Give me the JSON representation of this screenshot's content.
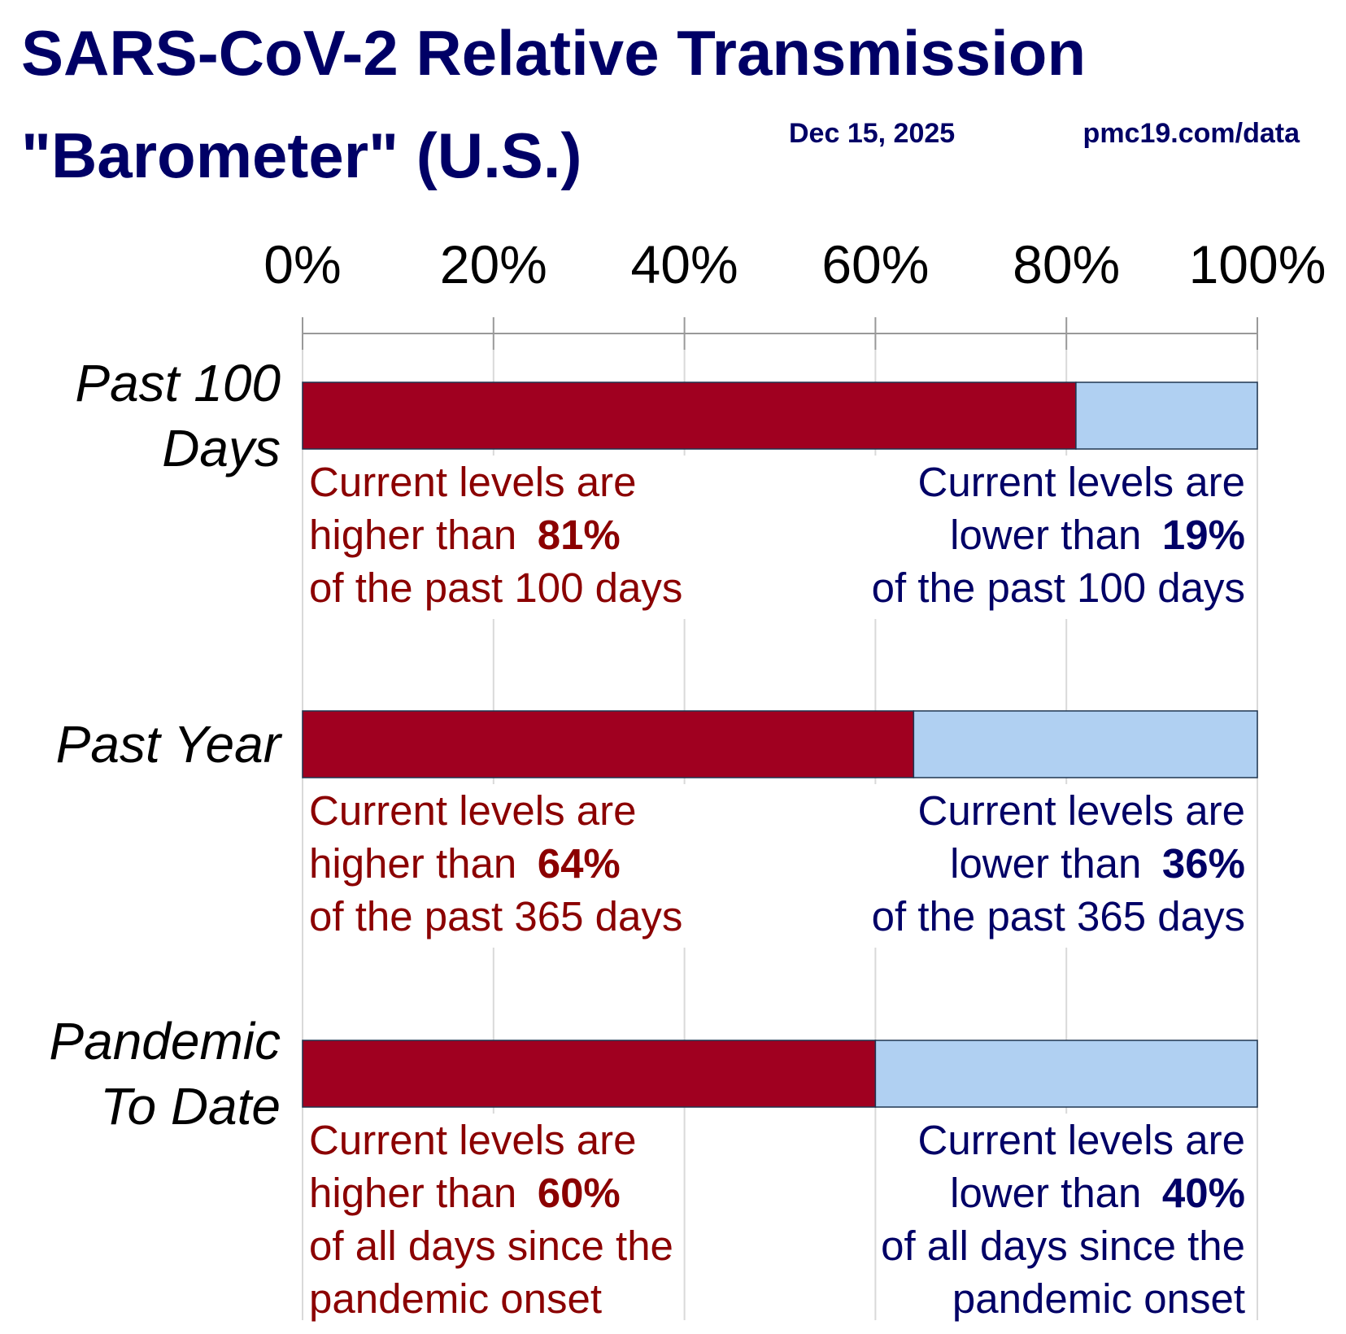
{
  "chart_data": {
    "type": "stacked-barh",
    "title": [
      "SARS-CoV-2 Relative Transmission",
      "\"Barometer\" (U.S.)"
    ],
    "date": "Dec 15, 2025",
    "source": "pmc19.com/data",
    "categories": [
      "Past 100 Days",
      "Past Year",
      "Pandemic To Date"
    ],
    "series": [
      {
        "color": "#a00020",
        "values": [
          81,
          64,
          60
        ],
        "value_labels": [
          "81%",
          "64%",
          "60%"
        ]
      },
      {
        "color": "#b0d0f2",
        "values": [
          19,
          36,
          40
        ],
        "value_labels": [
          "19%",
          "36%",
          "40%"
        ]
      }
    ],
    "xlim": [
      0,
      100
    ],
    "xticks": [
      {
        "value": 0,
        "label": "0%"
      },
      {
        "value": 20,
        "label": "20%"
      },
      {
        "value": 40,
        "label": "40%"
      },
      {
        "value": 60,
        "label": "60%"
      },
      {
        "value": 80,
        "label": "80%"
      },
      {
        "value": 100,
        "label": "100%"
      }
    ],
    "grid": true,
    "annotations": [
      {
        "higher": [
          "Current levels are",
          "higher than"
        ],
        "higher_rest": [
          "of the past 100 days"
        ],
        "lower": [
          "Current levels are",
          "lower than"
        ],
        "lower_rest": [
          "of the past 100 days"
        ]
      },
      {
        "higher": [
          "Current levels are",
          "higher than"
        ],
        "higher_rest": [
          "of the past 365 days"
        ],
        "lower": [
          "Current levels are",
          "lower than"
        ],
        "lower_rest": [
          "of the past 365 days"
        ]
      },
      {
        "higher": [
          "Current levels are",
          "higher than"
        ],
        "higher_rest": [
          "of all days since the",
          "pandemic onset"
        ],
        "lower": [
          "Current levels are",
          "lower than"
        ],
        "lower_rest": [
          "of all days since the",
          "pandemic onset"
        ]
      }
    ]
  }
}
